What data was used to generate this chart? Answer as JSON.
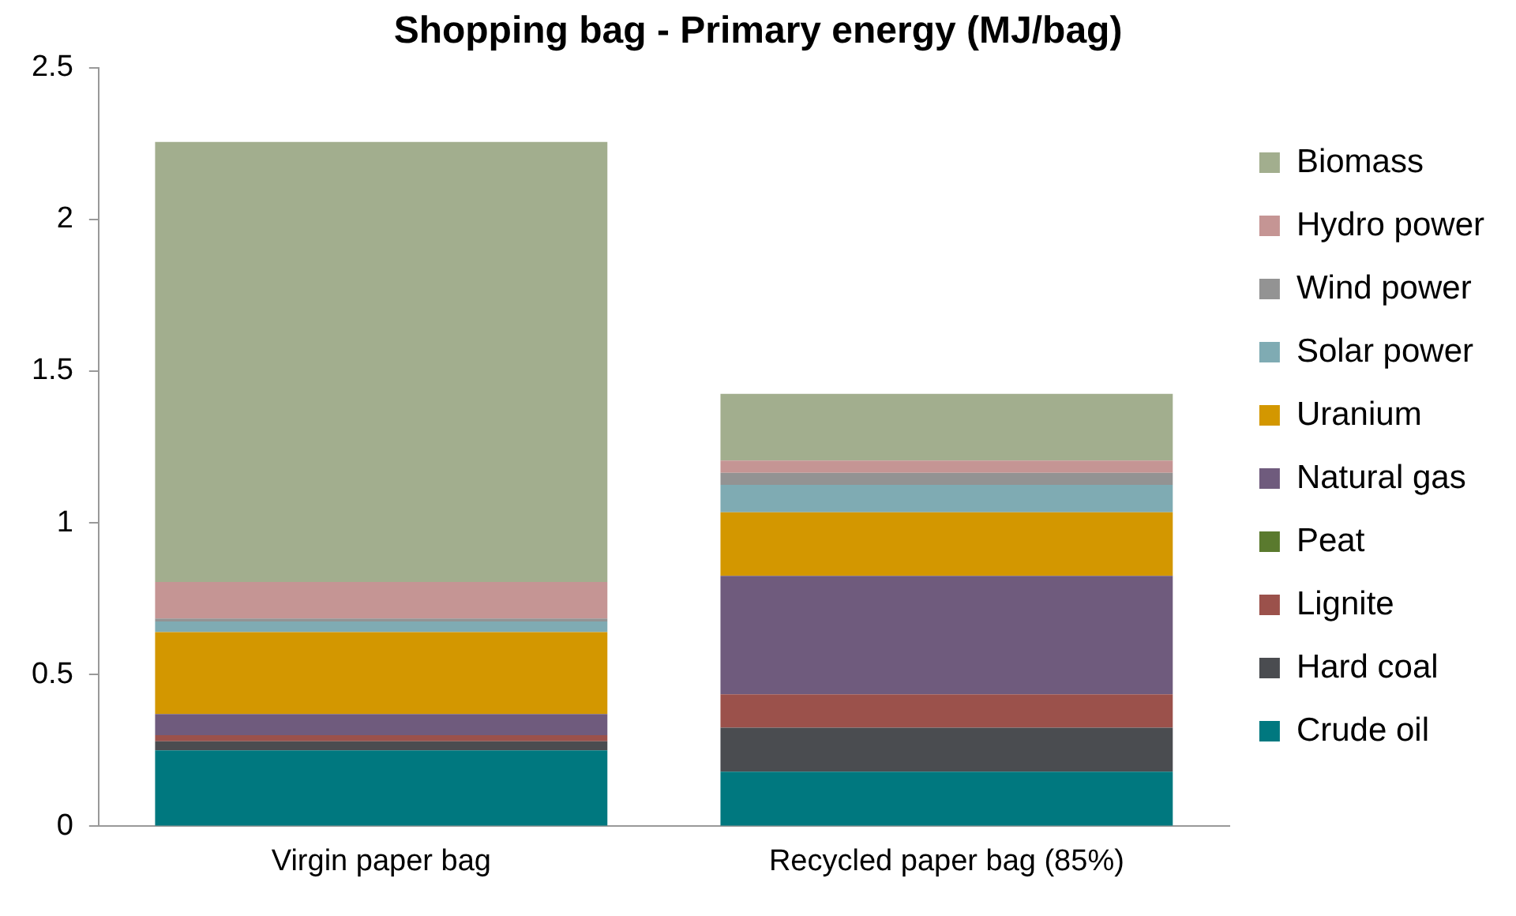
{
  "chart_data": {
    "type": "bar",
    "title": "Shopping bag - Primary energy (MJ/bag)",
    "stacked": true,
    "categories": [
      "Virgin paper bag",
      "Recycled paper bag (85%)"
    ],
    "series": [
      {
        "name": "Crude oil",
        "color": "#00787f",
        "values": [
          0.25,
          0.18
        ]
      },
      {
        "name": "Hard coal",
        "color": "#4a4c50",
        "values": [
          0.03,
          0.145
        ]
      },
      {
        "name": "Lignite",
        "color": "#9b514b",
        "values": [
          0.02,
          0.11
        ]
      },
      {
        "name": "Peat",
        "color": "#5a7a2e",
        "values": [
          0,
          0
        ]
      },
      {
        "name": "Natural gas",
        "color": "#6f5b7d",
        "values": [
          0.07,
          0.39
        ]
      },
      {
        "name": "Uranium",
        "color": "#d39700",
        "values": [
          0.27,
          0.21
        ]
      },
      {
        "name": "Solar power",
        "color": "#7fabb3",
        "values": [
          0.035,
          0.09
        ]
      },
      {
        "name": "Wind power",
        "color": "#939393",
        "values": [
          0.01,
          0.04
        ]
      },
      {
        "name": "Hydro power",
        "color": "#c59594",
        "values": [
          0.12,
          0.04
        ]
      },
      {
        "name": "Biomass",
        "color": "#a2ae8e",
        "values": [
          1.45,
          0.22
        ]
      }
    ],
    "ylim": [
      0,
      2.5
    ],
    "yticks": [
      0,
      0.5,
      1,
      1.5,
      2,
      2.5
    ],
    "grid": false,
    "legend": "right"
  }
}
